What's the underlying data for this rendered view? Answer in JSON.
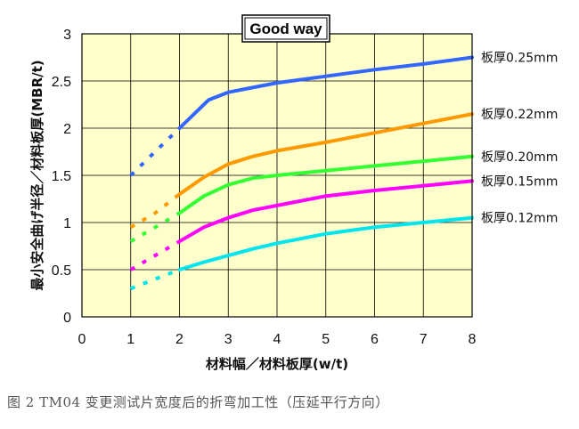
{
  "caption": "图 2    TM04 变更测试片宽度后的折弯加工性（压延平行方向）",
  "chart_data": {
    "type": "line",
    "title": "Good way",
    "xlabel": "材料幅／材料板厚(w/t)",
    "ylabel": "最小安全曲げ半径／材料板厚(MBR/t)",
    "xlim": [
      0,
      8
    ],
    "ylim": [
      0,
      3
    ],
    "x_ticks": [
      "0",
      "1",
      "2",
      "3",
      "4",
      "5",
      "6",
      "7",
      "8"
    ],
    "y_ticks": [
      "0",
      "0.5",
      "1",
      "1.5",
      "2",
      "2.5",
      "3"
    ],
    "grid": true,
    "plot_background": "#ffffcc",
    "note": "segment from w/t=1 to 2 is drawn dashed",
    "series": [
      {
        "name": "板厚0.25mm",
        "color": "#3366ff",
        "x": [
          1,
          1.5,
          2,
          2.3,
          2.6,
          3,
          3.5,
          4,
          5,
          6,
          7,
          8
        ],
        "y": [
          1.5,
          1.75,
          2.0,
          2.15,
          2.3,
          2.38,
          2.43,
          2.48,
          2.55,
          2.62,
          2.68,
          2.75
        ]
      },
      {
        "name": "板厚0.22mm",
        "color": "#ff9900",
        "x": [
          1,
          1.5,
          2,
          2.5,
          3,
          3.5,
          4,
          5,
          6,
          7,
          8
        ],
        "y": [
          0.95,
          1.1,
          1.3,
          1.48,
          1.62,
          1.7,
          1.76,
          1.85,
          1.95,
          2.05,
          2.15
        ]
      },
      {
        "name": "板厚0.20mm",
        "color": "#33ff33",
        "x": [
          1,
          1.5,
          2,
          2.5,
          3,
          3.5,
          4,
          5,
          6,
          7,
          8
        ],
        "y": [
          0.8,
          0.95,
          1.1,
          1.28,
          1.4,
          1.47,
          1.5,
          1.55,
          1.6,
          1.65,
          1.7
        ]
      },
      {
        "name": "板厚0.15mm",
        "color": "#ff00ff",
        "x": [
          1,
          1.5,
          2,
          2.5,
          3,
          3.5,
          4,
          5,
          6,
          7,
          8
        ],
        "y": [
          0.5,
          0.65,
          0.8,
          0.95,
          1.05,
          1.13,
          1.18,
          1.28,
          1.34,
          1.39,
          1.44
        ]
      },
      {
        "name": "板厚0.12mm",
        "color": "#00e5ee",
        "x": [
          1,
          1.5,
          2,
          2.5,
          3,
          3.5,
          4,
          5,
          6,
          7,
          8
        ],
        "y": [
          0.3,
          0.4,
          0.5,
          0.58,
          0.65,
          0.72,
          0.78,
          0.88,
          0.95,
          1.0,
          1.05
        ]
      }
    ]
  }
}
